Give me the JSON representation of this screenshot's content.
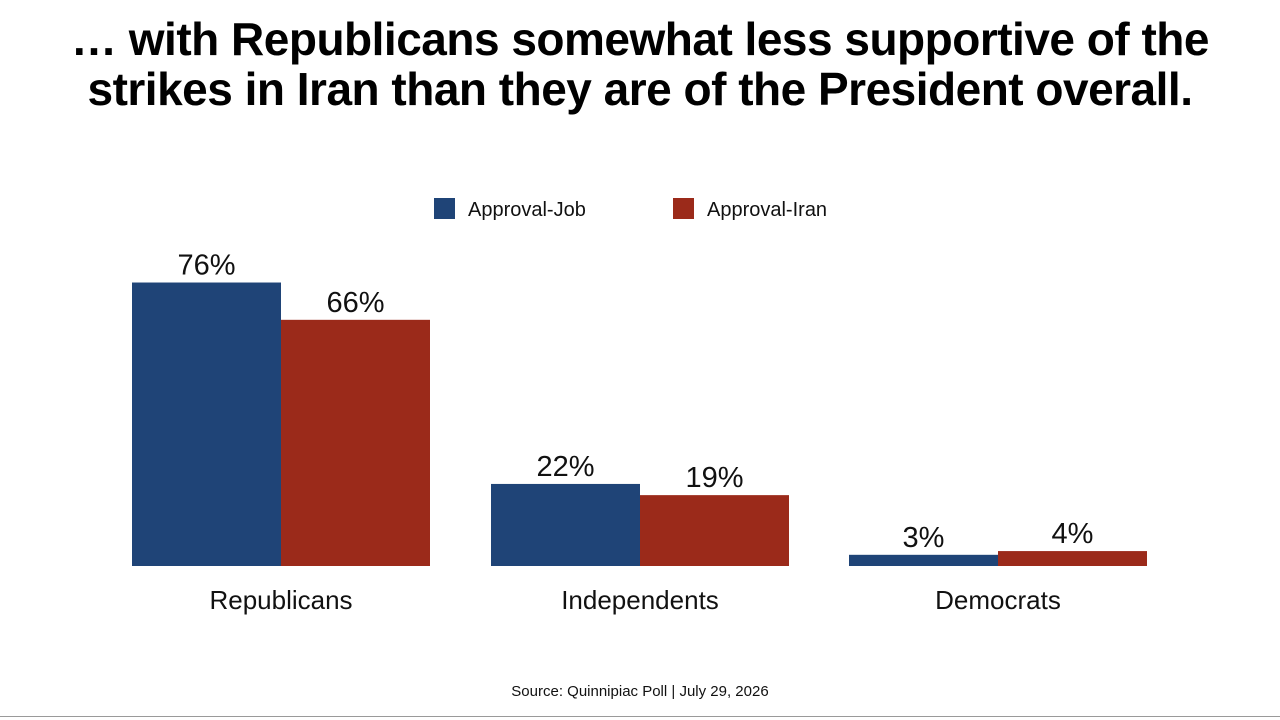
{
  "headline": {
    "line1": "… with Republicans somewhat less supportive of the",
    "line2": "strikes in Iran than they are of the President overall."
  },
  "source": "Source: Quinnipiac Poll | July 29, 2026",
  "colors": {
    "approval_job": "#1f4477",
    "approval_iran": "#9b2a1a"
  },
  "chart_data": {
    "type": "bar",
    "categories": [
      "Republicans",
      "Independents",
      "Democrats"
    ],
    "series": [
      {
        "name": "Approval-Job",
        "values": [
          76,
          22,
          3
        ],
        "labels": [
          "76%",
          "22%",
          "3%"
        ]
      },
      {
        "name": "Approval-Iran",
        "values": [
          66,
          19,
          4
        ],
        "labels": [
          "66%",
          "19%",
          "4%"
        ]
      }
    ],
    "ylim": [
      0,
      80
    ],
    "grid": false,
    "legend_position": "top-center",
    "xlabel": "",
    "ylabel": ""
  }
}
